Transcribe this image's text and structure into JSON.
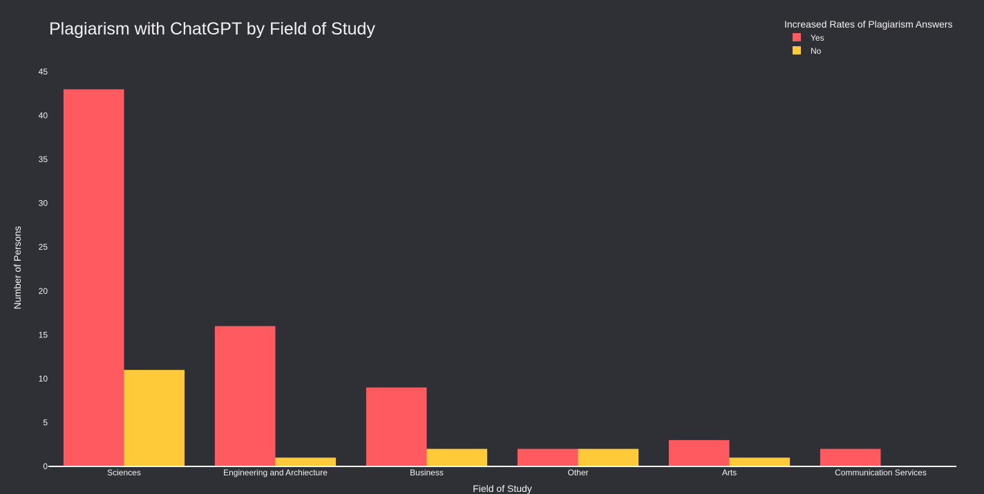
{
  "chart_data": {
    "type": "bar",
    "title": "Plagiarism with ChatGPT by Field of Study",
    "xlabel": "Field of Study",
    "ylabel": "Number of Persons",
    "categories": [
      "Sciences",
      "Engineering and Archiecture",
      "Business",
      "Other",
      "Arts",
      "Communication Services"
    ],
    "series": [
      {
        "name": "Yes",
        "color": "#ff5a5f",
        "values": [
          43,
          16,
          9,
          2,
          3,
          2
        ]
      },
      {
        "name": "No",
        "color": "#ffca3a",
        "values": [
          11,
          1,
          2,
          2,
          1,
          0
        ]
      }
    ],
    "ylim": [
      0,
      45
    ],
    "yticks": [
      0,
      5,
      10,
      15,
      20,
      25,
      30,
      35,
      40,
      45
    ],
    "legend": {
      "title": "Increased Rates of Plagiarism Answers",
      "position": "top-right"
    },
    "grid": false,
    "barmode": "group"
  }
}
